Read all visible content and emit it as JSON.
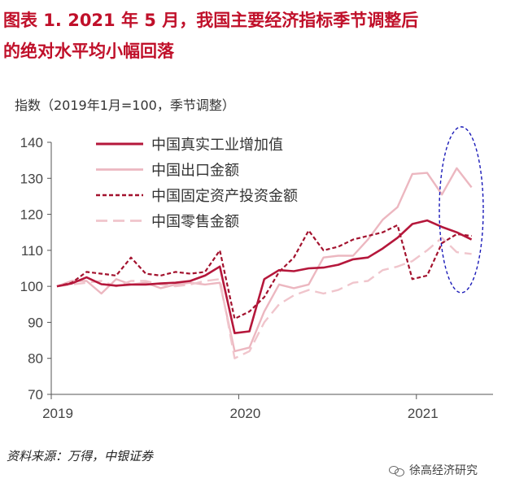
{
  "title": {
    "line1": "图表 1.  2021 年 5 月，我国主要经济指标季节调整后",
    "line2": "的绝对水平均小幅回落"
  },
  "unit_label": "指数（2019年1月=100，季节调整）",
  "source": "资料来源：万得，中银证券",
  "watermark": "徐高经济研究",
  "colors": {
    "title": "#c0102a",
    "industrial": "#b5173b",
    "exports": "#ecb7c0",
    "fai": "#a3122e",
    "retail": "#f0c5cc",
    "highlight": "#1a1ab8",
    "axis": "#555555"
  },
  "chart_data": {
    "type": "line",
    "ylim": [
      70,
      140
    ],
    "yticks": [
      70,
      80,
      90,
      100,
      110,
      120,
      130,
      140
    ],
    "xticks": [
      "2019",
      "2020",
      "2021"
    ],
    "x": [
      "2019-01",
      "2019-02",
      "2019-03",
      "2019-04",
      "2019-05",
      "2019-06",
      "2019-07",
      "2019-08",
      "2019-09",
      "2019-10",
      "2019-11",
      "2019-12",
      "2020-01",
      "2020-02",
      "2020-03",
      "2020-04",
      "2020-05",
      "2020-06",
      "2020-07",
      "2020-08",
      "2020-09",
      "2020-10",
      "2020-11",
      "2020-12",
      "2021-01",
      "2021-02",
      "2021-03",
      "2021-04",
      "2021-05"
    ],
    "series": [
      {
        "name": "中国真实工业增加值",
        "style": "solid-thick",
        "values": [
          100,
          100.8,
          102.5,
          100.6,
          100.2,
          100.5,
          100.5,
          100.8,
          101,
          101.5,
          103,
          105.5,
          87,
          87.5,
          102,
          104.5,
          104.2,
          105,
          105.2,
          106,
          107.5,
          108,
          110.5,
          113.5,
          117.3,
          118.3,
          116.5,
          115,
          113
        ]
      },
      {
        "name": "中国出口金额",
        "style": "solid",
        "values": [
          100,
          101.5,
          101.5,
          98,
          102,
          100.5,
          101,
          99.5,
          100.5,
          101,
          100.5,
          101,
          82,
          83,
          93,
          100.5,
          99.5,
          100.5,
          108,
          108.5,
          108.5,
          113,
          118.5,
          122,
          131.2,
          131.5,
          125.5,
          132.8,
          127.5
        ]
      },
      {
        "name": "中国固定资产投资金额",
        "style": "dashed",
        "values": [
          100,
          101,
          104,
          103.5,
          103,
          108,
          103.5,
          103,
          104,
          103.5,
          104,
          110,
          91,
          93,
          97,
          104,
          108,
          115.5,
          110,
          111,
          113,
          114,
          115,
          117,
          102,
          103,
          112,
          114.5,
          114
        ]
      },
      {
        "name": "中国零售金额",
        "style": "long-dashed",
        "values": [
          100,
          100.5,
          101,
          101.5,
          100,
          101.5,
          101.5,
          100.5,
          100,
          100.5,
          101.5,
          102,
          80,
          82,
          90,
          95,
          97.5,
          99,
          98,
          99,
          101,
          101.5,
          104.5,
          105.5,
          107,
          110,
          113.5,
          109.5,
          109
        ]
      }
    ]
  }
}
